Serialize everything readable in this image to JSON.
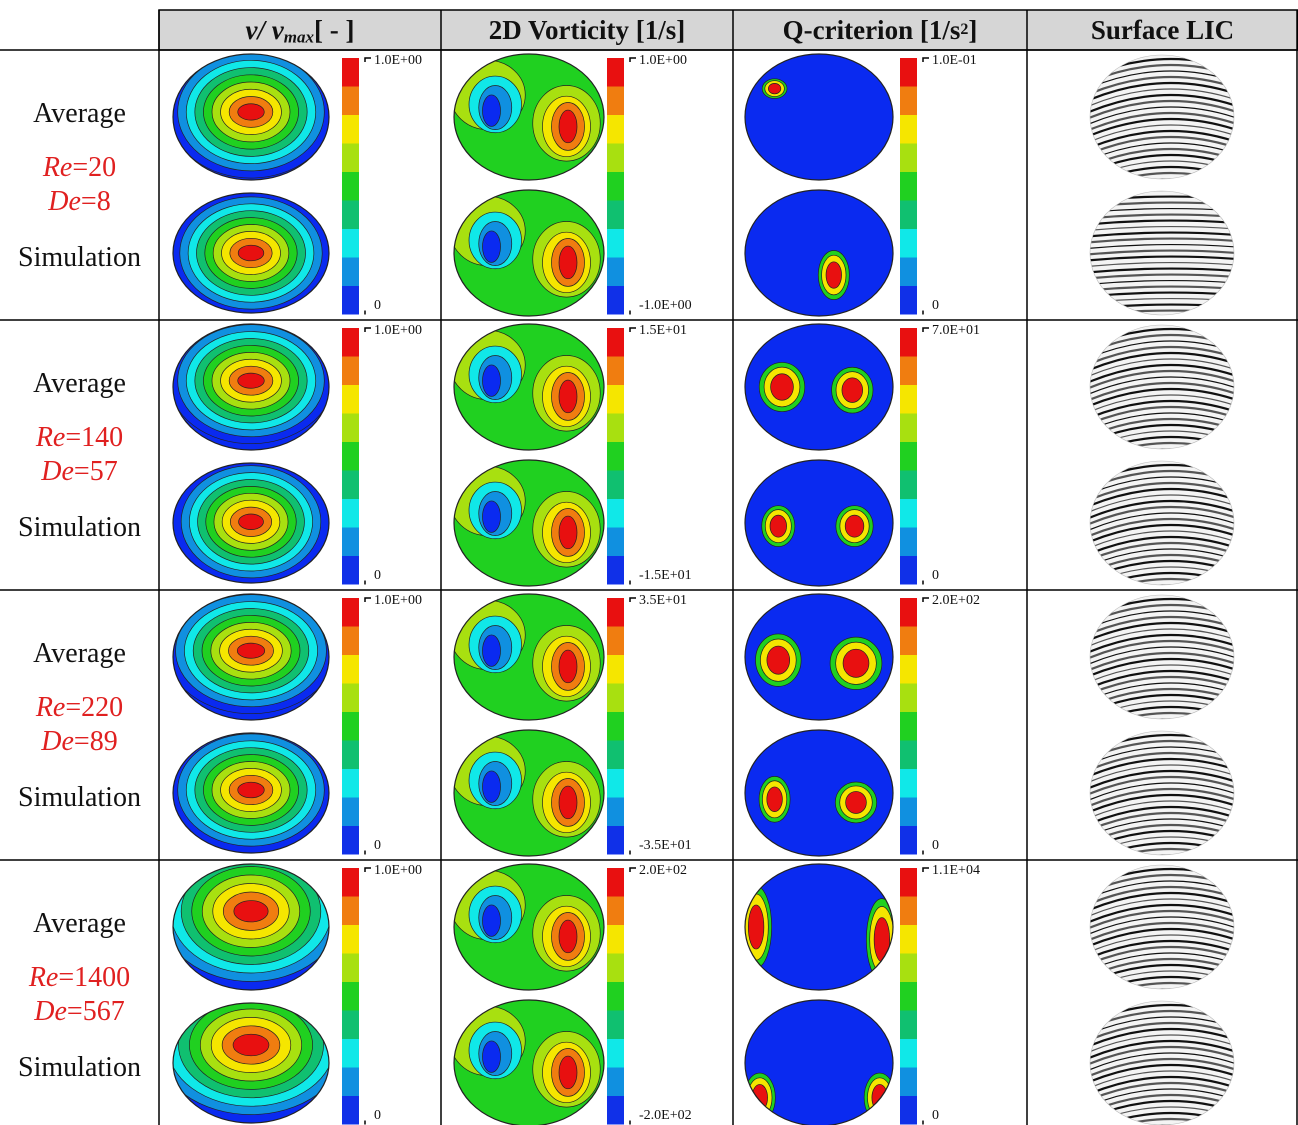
{
  "headers": {
    "col1_main": "v/ v",
    "col1_sub": "max",
    "col1_unit": " [ - ]",
    "col2": "2D Vorticity [1/s]",
    "col3_main": "Q-criterion [1/s",
    "col3_sup": "2",
    "col3_close": "]",
    "col4": "Surface LIC"
  },
  "rows": [
    {
      "label_top": "Average",
      "re_sym": "Re",
      "re_val": "=20",
      "de_sym": "De",
      "de_val": "=8",
      "label_bottom": "Simulation",
      "v_max": "1.0E+00",
      "v_min": "0",
      "vort_max": "1.0E+00",
      "vort_min": "-1.0E+00",
      "q_max": "1.0E-01",
      "q_min": "0"
    },
    {
      "label_top": "Average",
      "re_sym": "Re",
      "re_val": "=140",
      "de_sym": "De",
      "de_val": "=57",
      "label_bottom": "Simulation",
      "v_max": "1.0E+00",
      "v_min": "0",
      "vort_max": "1.5E+01",
      "vort_min": "-1.5E+01",
      "q_max": "7.0E+01",
      "q_min": "0"
    },
    {
      "label_top": "Average",
      "re_sym": "Re",
      "re_val": "=220",
      "de_sym": "De",
      "de_val": "=89",
      "label_bottom": "Simulation",
      "v_max": "1.0E+00",
      "v_min": "0",
      "vort_max": "3.5E+01",
      "vort_min": "-3.5E+01",
      "q_max": "2.0E+02",
      "q_min": "0"
    },
    {
      "label_top": "Average",
      "re_sym": "Re",
      "re_val": "=1400",
      "de_sym": "De",
      "de_val": "=567",
      "label_bottom": "Simulation",
      "v_max": "1.0E+00",
      "v_min": "0",
      "vort_max": "2.0E+02",
      "vort_min": "-2.0E+02",
      "q_max": "1.1E+04",
      "q_min": "0"
    }
  ],
  "colorbar_colors": [
    "#e81010",
    "#f07d10",
    "#f5e600",
    "#a8e010",
    "#20d020",
    "#10c070",
    "#10e8e8",
    "#1090e0",
    "#1030e8"
  ],
  "colors": {
    "label_red": "#e02020",
    "header_bg": "#d6d6d6",
    "blue": "#0a2af0",
    "red": "#e81010"
  }
}
